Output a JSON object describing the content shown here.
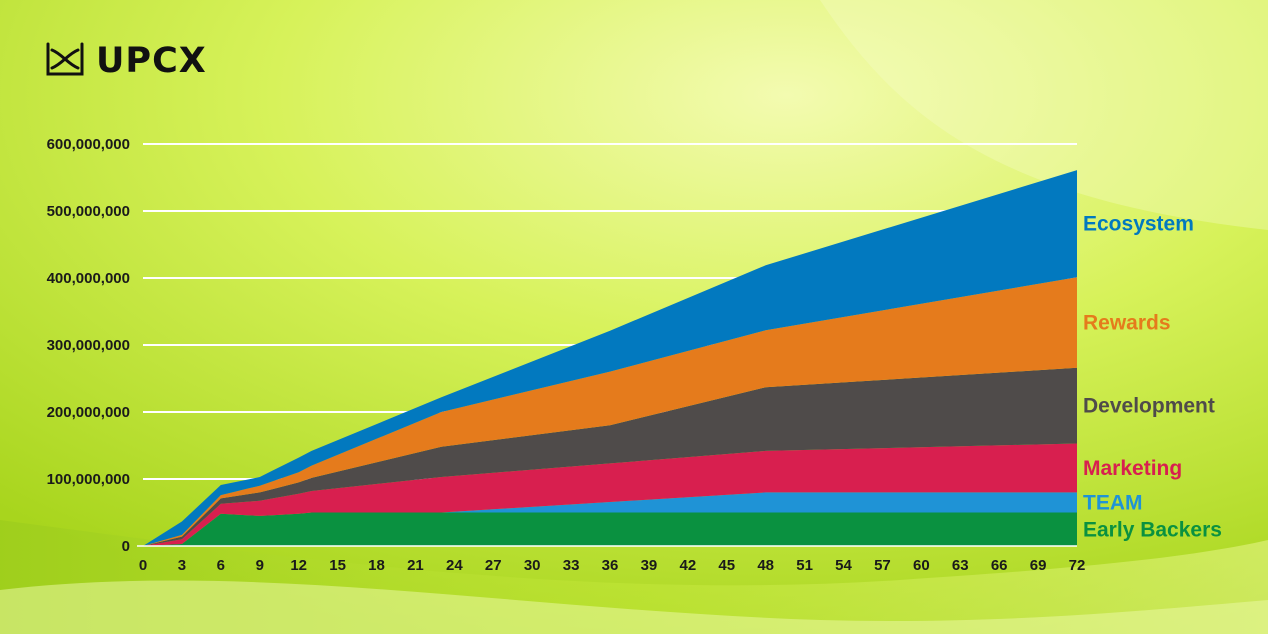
{
  "brand": {
    "name": "UPCX"
  },
  "colors": {
    "background_light": "#e6f77a",
    "background_dark": "#a4d61a",
    "gridline": "#ffffff"
  },
  "chart_data": {
    "type": "area",
    "stacked": true,
    "title": "",
    "xlabel": "",
    "ylabel": "",
    "ylim": [
      0,
      600000000
    ],
    "xlim": [
      0,
      72
    ],
    "yticks": [
      0,
      100000000,
      200000000,
      300000000,
      400000000,
      500000000,
      600000000
    ],
    "ytick_labels": [
      "0",
      "100,000,000",
      "200,000,000",
      "300,000,000",
      "400,000,000",
      "500,000,000",
      "600,000,000"
    ],
    "xticks": [
      0,
      3,
      6,
      9,
      12,
      15,
      18,
      21,
      24,
      27,
      30,
      33,
      36,
      39,
      42,
      45,
      48,
      51,
      54,
      57,
      60,
      63,
      66,
      69,
      72
    ],
    "grid": true,
    "legend": "right",
    "series": [
      {
        "name": "Early Backers",
        "color": "#0a9140",
        "x": [
          0,
          3,
          6,
          7,
          8,
          9,
          10,
          12,
          13,
          72
        ],
        "values": [
          0,
          3000000,
          48000000,
          47000000,
          46000000,
          45000000,
          46000000,
          48000000,
          50000000,
          50000000
        ]
      },
      {
        "name": "TEAM",
        "color": "#1f93d6",
        "x": [
          0,
          23,
          48,
          72
        ],
        "values": [
          0,
          0,
          30000000,
          30000000
        ]
      },
      {
        "name": "Marketing",
        "color": "#d81f4f",
        "x": [
          0,
          3,
          6,
          12,
          23,
          48,
          72
        ],
        "values": [
          0,
          7000000,
          15000000,
          30000000,
          53000000,
          62000000,
          73000000
        ]
      },
      {
        "name": "Development",
        "color": "#4f4b4a",
        "x": [
          0,
          6,
          12,
          23,
          36,
          48,
          72
        ],
        "values": [
          0,
          8000000,
          17000000,
          45000000,
          57000000,
          95000000,
          113000000
        ]
      },
      {
        "name": "Rewards",
        "color": "#e57b1c",
        "x": [
          0,
          6,
          12,
          23,
          36,
          48,
          72
        ],
        "values": [
          0,
          5000000,
          15000000,
          52000000,
          80000000,
          85000000,
          135000000
        ]
      },
      {
        "name": "Ecosystem",
        "color": "#0279bf",
        "x": [
          0,
          3,
          6,
          9,
          12,
          23,
          48,
          72
        ],
        "values": [
          0,
          20000000,
          15000000,
          13000000,
          22000000,
          22000000,
          97000000,
          160000000
        ]
      }
    ]
  }
}
